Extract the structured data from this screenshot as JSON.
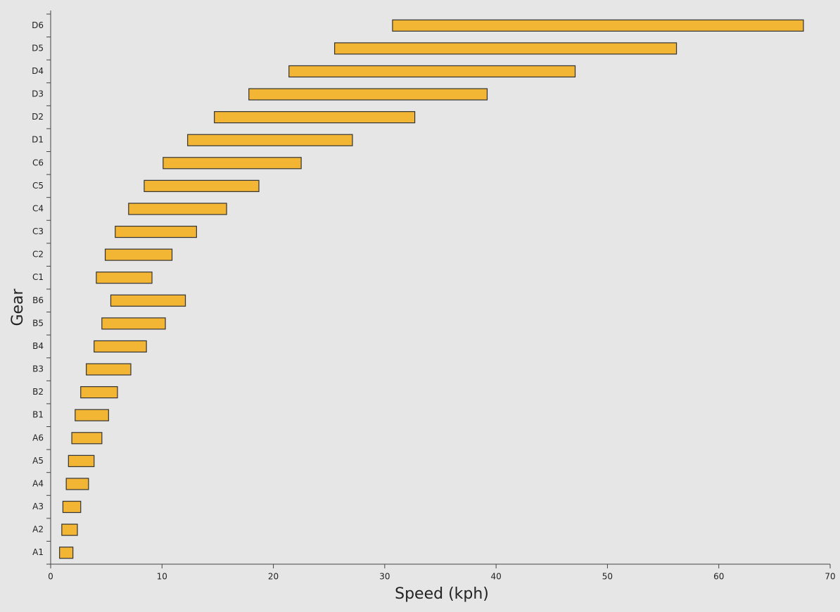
{
  "chart_data": {
    "type": "range-bar",
    "x_label": "Speed (kph)",
    "y_label": "Gear",
    "categories": [
      "A1",
      "A2",
      "A3",
      "A4",
      "A5",
      "A6",
      "B1",
      "B2",
      "B3",
      "B4",
      "B5",
      "B6",
      "C1",
      "C2",
      "C3",
      "C4",
      "C5",
      "C6",
      "D1",
      "D2",
      "D3",
      "D4",
      "D5",
      "D6"
    ],
    "starts": [
      0.8,
      1.0,
      1.1,
      1.4,
      1.6,
      1.9,
      2.2,
      2.7,
      3.2,
      3.9,
      4.6,
      5.4,
      4.1,
      4.9,
      5.8,
      7.0,
      8.4,
      10.1,
      12.3,
      14.7,
      17.8,
      21.4,
      25.5,
      30.7
    ],
    "ends": [
      2.0,
      2.4,
      2.7,
      3.4,
      3.9,
      4.6,
      5.2,
      6.0,
      7.2,
      8.6,
      10.3,
      12.1,
      9.1,
      10.9,
      13.1,
      15.8,
      18.7,
      22.5,
      27.1,
      32.7,
      39.2,
      47.1,
      56.2,
      67.6
    ],
    "color": "#f2b534",
    "xlim": [
      0,
      70
    ],
    "xticks": [
      0,
      10,
      20,
      30,
      40,
      50,
      60,
      70
    ]
  }
}
